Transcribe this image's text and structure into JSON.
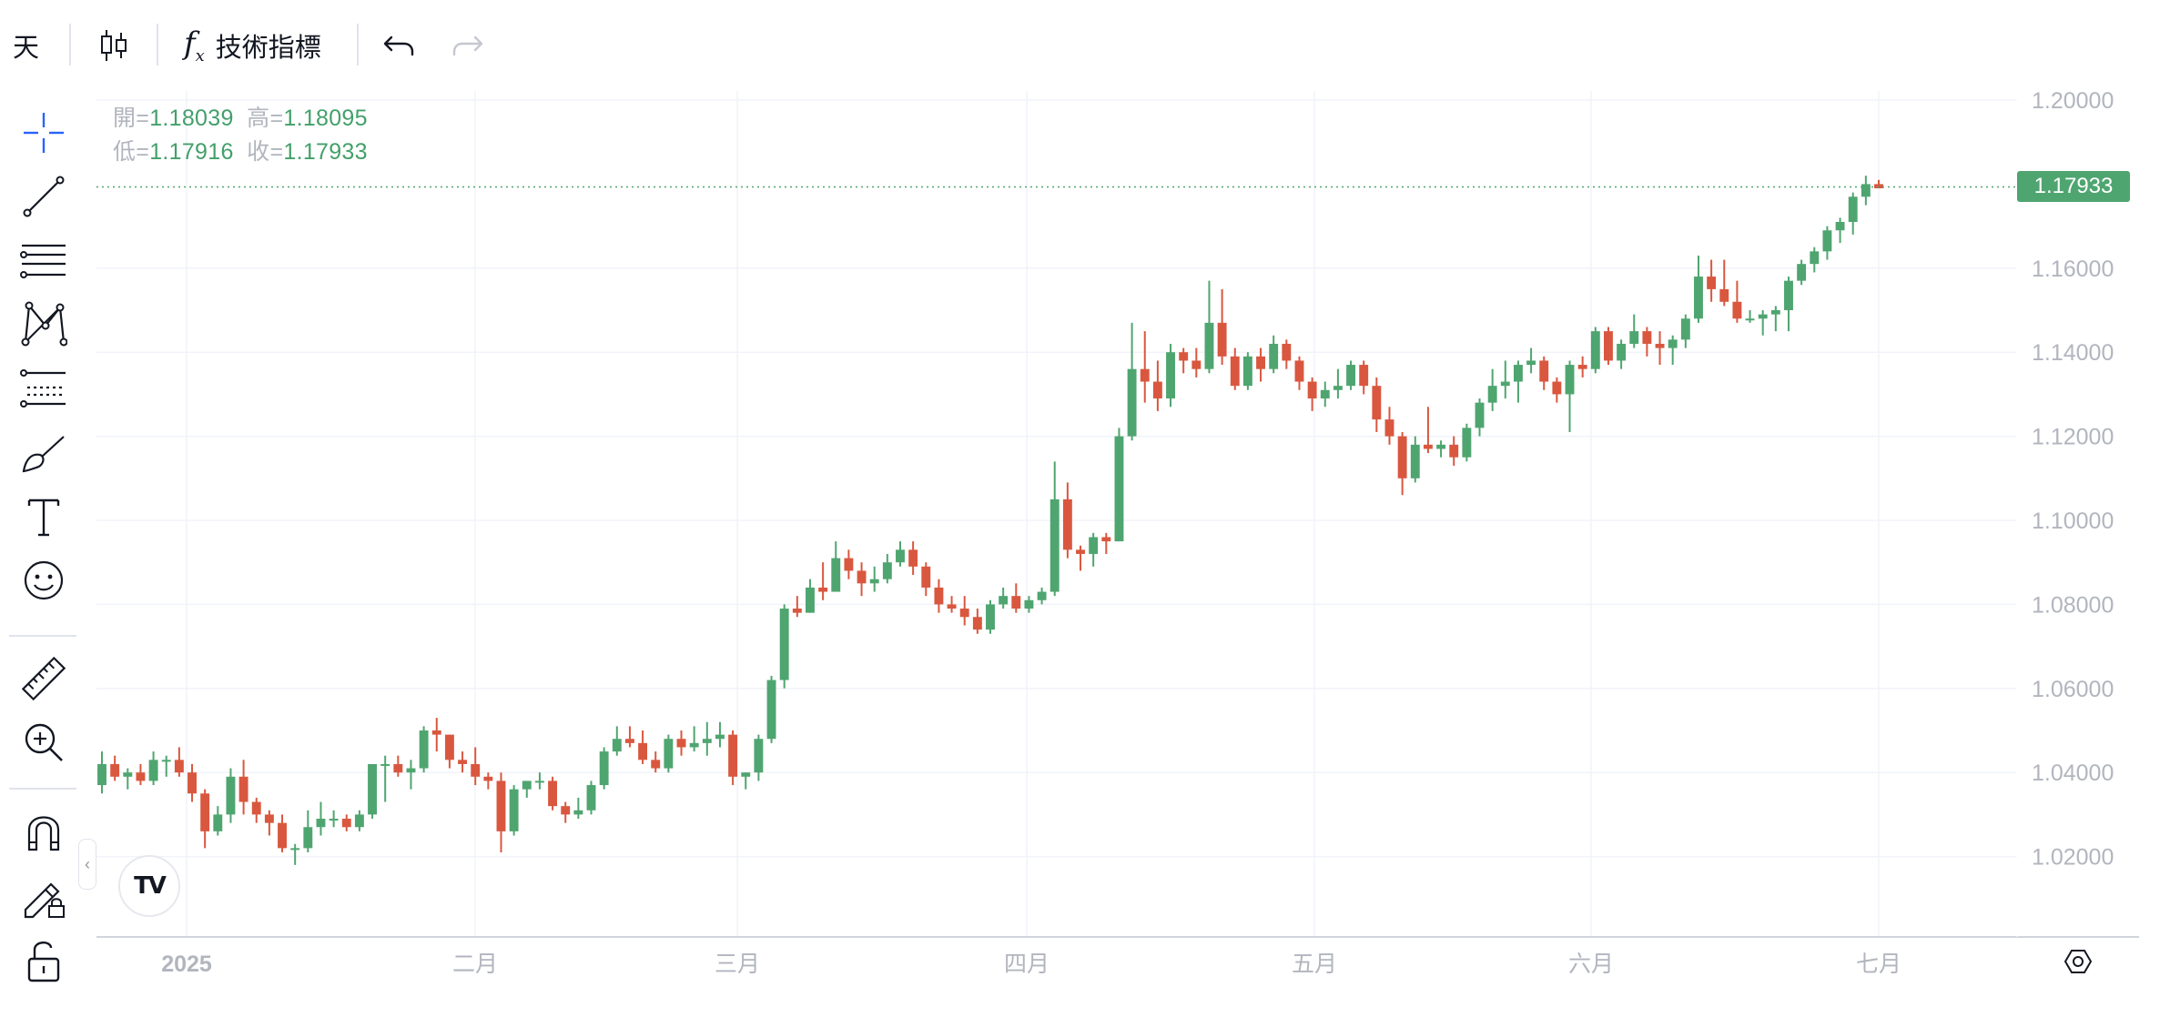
{
  "toolbar": {
    "interval_label": "天",
    "indicators_label": "技術指標"
  },
  "legend": {
    "open_label": "開=",
    "open_value": "1.18039",
    "high_label": "高=",
    "high_value": "1.18095",
    "low_label": "低=",
    "low_value": "1.17916",
    "close_label": "收=",
    "close_value": "1.17933"
  },
  "colors": {
    "up": "#4fa570",
    "down": "#d9573f",
    "grid": "#f0f3fa",
    "axis_text": "#b2b5be",
    "price_line": "#4fa570"
  },
  "left_tools": [
    "crosshair-icon",
    "trend-line-icon",
    "fib-retracement-icon",
    "pattern-icon",
    "forecast-icon",
    "brush-icon",
    "text-icon",
    "emoji-icon",
    "ruler-icon",
    "zoom-in-icon",
    "magnet-icon",
    "lock-drawing-icon",
    "unlock-icon"
  ],
  "chart_data": {
    "type": "candlestick",
    "y_axis": {
      "labels": [
        "1.20000",
        "1.16000",
        "1.14000",
        "1.12000",
        "1.10000",
        "1.08000",
        "1.06000",
        "1.04000",
        "1.02000"
      ],
      "ylim": [
        1.0,
        1.2
      ],
      "scale": "linear",
      "position": "right"
    },
    "x_axis": {
      "labels": [
        "2025",
        "二月",
        "三月",
        "四月",
        "五月",
        "六月",
        "七月"
      ]
    },
    "last_price": "1.17933",
    "grid": true,
    "candles": [
      [
        1.037,
        1.045,
        1.035,
        1.042
      ],
      [
        1.042,
        1.044,
        1.038,
        1.039
      ],
      [
        1.039,
        1.041,
        1.036,
        1.04
      ],
      [
        1.04,
        1.042,
        1.037,
        1.038
      ],
      [
        1.038,
        1.045,
        1.037,
        1.043
      ],
      [
        1.043,
        1.044,
        1.039,
        1.043
      ],
      [
        1.043,
        1.046,
        1.039,
        1.04
      ],
      [
        1.04,
        1.042,
        1.033,
        1.035
      ],
      [
        1.035,
        1.036,
        1.022,
        1.026
      ],
      [
        1.026,
        1.032,
        1.025,
        1.03
      ],
      [
        1.03,
        1.041,
        1.028,
        1.039
      ],
      [
        1.039,
        1.043,
        1.03,
        1.033
      ],
      [
        1.033,
        1.034,
        1.028,
        1.03
      ],
      [
        1.03,
        1.031,
        1.025,
        1.028
      ],
      [
        1.028,
        1.03,
        1.021,
        1.022
      ],
      [
        1.022,
        1.023,
        1.018,
        1.022
      ],
      [
        1.022,
        1.031,
        1.021,
        1.027
      ],
      [
        1.027,
        1.033,
        1.025,
        1.029
      ],
      [
        1.029,
        1.031,
        1.027,
        1.029
      ],
      [
        1.029,
        1.03,
        1.026,
        1.027
      ],
      [
        1.027,
        1.031,
        1.026,
        1.03
      ],
      [
        1.03,
        1.042,
        1.029,
        1.042
      ],
      [
        1.042,
        1.044,
        1.033,
        1.042
      ],
      [
        1.042,
        1.044,
        1.039,
        1.04
      ],
      [
        1.04,
        1.043,
        1.036,
        1.041
      ],
      [
        1.041,
        1.051,
        1.04,
        1.05
      ],
      [
        1.05,
        1.053,
        1.045,
        1.049
      ],
      [
        1.049,
        1.049,
        1.041,
        1.043
      ],
      [
        1.043,
        1.045,
        1.04,
        1.042
      ],
      [
        1.042,
        1.046,
        1.037,
        1.039
      ],
      [
        1.039,
        1.04,
        1.036,
        1.038
      ],
      [
        1.038,
        1.04,
        1.021,
        1.026
      ],
      [
        1.026,
        1.037,
        1.025,
        1.036
      ],
      [
        1.036,
        1.038,
        1.034,
        1.038
      ],
      [
        1.038,
        1.04,
        1.036,
        1.038
      ],
      [
        1.038,
        1.039,
        1.031,
        1.032
      ],
      [
        1.032,
        1.033,
        1.028,
        1.03
      ],
      [
        1.03,
        1.034,
        1.029,
        1.031
      ],
      [
        1.031,
        1.038,
        1.03,
        1.037
      ],
      [
        1.037,
        1.046,
        1.036,
        1.045
      ],
      [
        1.045,
        1.051,
        1.044,
        1.048
      ],
      [
        1.048,
        1.051,
        1.046,
        1.047
      ],
      [
        1.047,
        1.05,
        1.042,
        1.043
      ],
      [
        1.043,
        1.045,
        1.04,
        1.041
      ],
      [
        1.041,
        1.049,
        1.04,
        1.048
      ],
      [
        1.048,
        1.05,
        1.044,
        1.046
      ],
      [
        1.046,
        1.051,
        1.045,
        1.047
      ],
      [
        1.047,
        1.052,
        1.044,
        1.048
      ],
      [
        1.048,
        1.052,
        1.046,
        1.049
      ],
      [
        1.049,
        1.05,
        1.037,
        1.039
      ],
      [
        1.039,
        1.04,
        1.036,
        1.04
      ],
      [
        1.04,
        1.049,
        1.038,
        1.048
      ],
      [
        1.048,
        1.063,
        1.047,
        1.062
      ],
      [
        1.062,
        1.08,
        1.06,
        1.079
      ],
      [
        1.079,
        1.082,
        1.077,
        1.078
      ],
      [
        1.078,
        1.086,
        1.078,
        1.084
      ],
      [
        1.084,
        1.09,
        1.081,
        1.083
      ],
      [
        1.083,
        1.095,
        1.083,
        1.091
      ],
      [
        1.091,
        1.093,
        1.086,
        1.088
      ],
      [
        1.088,
        1.09,
        1.082,
        1.085
      ],
      [
        1.085,
        1.089,
        1.083,
        1.086
      ],
      [
        1.086,
        1.092,
        1.085,
        1.09
      ],
      [
        1.09,
        1.095,
        1.089,
        1.093
      ],
      [
        1.093,
        1.095,
        1.087,
        1.089
      ],
      [
        1.089,
        1.09,
        1.082,
        1.084
      ],
      [
        1.084,
        1.086,
        1.078,
        1.08
      ],
      [
        1.08,
        1.082,
        1.078,
        1.079
      ],
      [
        1.079,
        1.082,
        1.075,
        1.077
      ],
      [
        1.077,
        1.079,
        1.073,
        1.074
      ],
      [
        1.074,
        1.081,
        1.073,
        1.08
      ],
      [
        1.08,
        1.084,
        1.079,
        1.082
      ],
      [
        1.082,
        1.085,
        1.078,
        1.079
      ],
      [
        1.079,
        1.082,
        1.078,
        1.081
      ],
      [
        1.081,
        1.084,
        1.08,
        1.083
      ],
      [
        1.083,
        1.114,
        1.082,
        1.105
      ],
      [
        1.105,
        1.109,
        1.091,
        1.093
      ],
      [
        1.093,
        1.094,
        1.088,
        1.092
      ],
      [
        1.092,
        1.097,
        1.089,
        1.096
      ],
      [
        1.096,
        1.097,
        1.092,
        1.095
      ],
      [
        1.095,
        1.122,
        1.095,
        1.12
      ],
      [
        1.12,
        1.147,
        1.119,
        1.136
      ],
      [
        1.136,
        1.145,
        1.128,
        1.133
      ],
      [
        1.133,
        1.138,
        1.126,
        1.129
      ],
      [
        1.129,
        1.142,
        1.127,
        1.14
      ],
      [
        1.14,
        1.141,
        1.135,
        1.138
      ],
      [
        1.138,
        1.141,
        1.134,
        1.136
      ],
      [
        1.136,
        1.157,
        1.135,
        1.147
      ],
      [
        1.147,
        1.155,
        1.137,
        1.139
      ],
      [
        1.139,
        1.141,
        1.131,
        1.132
      ],
      [
        1.132,
        1.14,
        1.131,
        1.139
      ],
      [
        1.139,
        1.141,
        1.133,
        1.136
      ],
      [
        1.136,
        1.144,
        1.135,
        1.142
      ],
      [
        1.142,
        1.143,
        1.136,
        1.138
      ],
      [
        1.138,
        1.139,
        1.131,
        1.133
      ],
      [
        1.133,
        1.134,
        1.126,
        1.129
      ],
      [
        1.129,
        1.133,
        1.127,
        1.131
      ],
      [
        1.131,
        1.136,
        1.129,
        1.132
      ],
      [
        1.132,
        1.138,
        1.131,
        1.137
      ],
      [
        1.137,
        1.138,
        1.13,
        1.132
      ],
      [
        1.132,
        1.134,
        1.121,
        1.124
      ],
      [
        1.124,
        1.127,
        1.118,
        1.12
      ],
      [
        1.12,
        1.121,
        1.106,
        1.11
      ],
      [
        1.11,
        1.12,
        1.109,
        1.118
      ],
      [
        1.118,
        1.127,
        1.116,
        1.117
      ],
      [
        1.117,
        1.119,
        1.115,
        1.118
      ],
      [
        1.118,
        1.12,
        1.113,
        1.115
      ],
      [
        1.115,
        1.123,
        1.114,
        1.122
      ],
      [
        1.122,
        1.129,
        1.12,
        1.128
      ],
      [
        1.128,
        1.136,
        1.126,
        1.132
      ],
      [
        1.132,
        1.138,
        1.129,
        1.133
      ],
      [
        1.133,
        1.138,
        1.128,
        1.137
      ],
      [
        1.137,
        1.141,
        1.135,
        1.138
      ],
      [
        1.138,
        1.139,
        1.131,
        1.133
      ],
      [
        1.133,
        1.134,
        1.128,
        1.13
      ],
      [
        1.13,
        1.138,
        1.121,
        1.137
      ],
      [
        1.137,
        1.139,
        1.134,
        1.136
      ],
      [
        1.136,
        1.146,
        1.135,
        1.145
      ],
      [
        1.145,
        1.146,
        1.137,
        1.138
      ],
      [
        1.138,
        1.143,
        1.136,
        1.142
      ],
      [
        1.142,
        1.149,
        1.141,
        1.145
      ],
      [
        1.145,
        1.146,
        1.139,
        1.142
      ],
      [
        1.142,
        1.145,
        1.137,
        1.141
      ],
      [
        1.141,
        1.144,
        1.137,
        1.143
      ],
      [
        1.143,
        1.149,
        1.141,
        1.148
      ],
      [
        1.148,
        1.163,
        1.147,
        1.158
      ],
      [
        1.158,
        1.162,
        1.152,
        1.155
      ],
      [
        1.155,
        1.162,
        1.151,
        1.152
      ],
      [
        1.152,
        1.157,
        1.147,
        1.148
      ],
      [
        1.148,
        1.15,
        1.147,
        1.148
      ],
      [
        1.148,
        1.15,
        1.144,
        1.149
      ],
      [
        1.149,
        1.151,
        1.145,
        1.15
      ],
      [
        1.15,
        1.158,
        1.145,
        1.157
      ],
      [
        1.157,
        1.162,
        1.156,
        1.161
      ],
      [
        1.161,
        1.165,
        1.159,
        1.164
      ],
      [
        1.164,
        1.17,
        1.162,
        1.169
      ],
      [
        1.169,
        1.172,
        1.166,
        1.171
      ],
      [
        1.171,
        1.178,
        1.168,
        1.177
      ],
      [
        1.177,
        1.182,
        1.175,
        1.18
      ],
      [
        1.18,
        1.181,
        1.179,
        1.179
      ]
    ]
  }
}
